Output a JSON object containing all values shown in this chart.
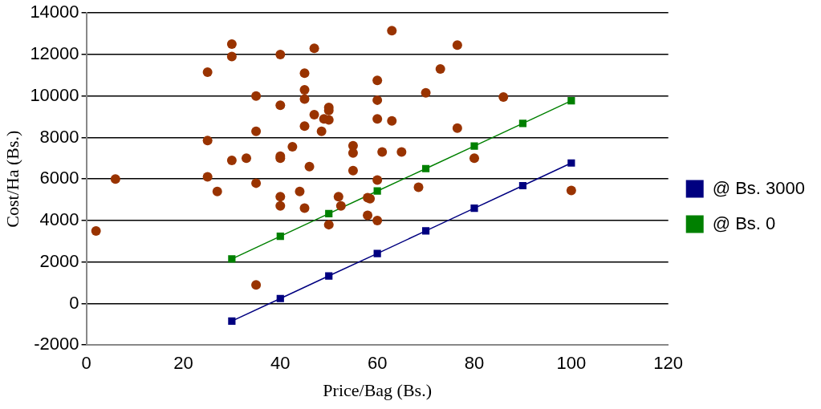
{
  "chart_data": {
    "type": "scatter",
    "xlabel": "Price/Bag (Bs.)",
    "ylabel": "Cost/Ha (Bs.)",
    "xlim": [
      0,
      120
    ],
    "xticks": [
      0,
      20,
      40,
      60,
      80,
      100,
      120
    ],
    "ylim": [
      -2000,
      14000
    ],
    "yticks": [
      -2000,
      0,
      2000,
      4000,
      6000,
      8000,
      10000,
      12000,
      14000
    ],
    "grid": "y",
    "legend": "right",
    "series": [
      {
        "color": "#993300",
        "marker": "circle",
        "x": [
          2,
          6,
          25,
          25,
          25,
          27,
          30,
          30,
          30,
          33,
          35,
          35,
          35,
          35,
          40,
          40,
          40,
          40,
          40,
          40,
          42.5,
          44,
          45,
          45,
          45,
          45,
          45,
          46,
          47,
          47,
          48.5,
          49,
          50,
          50,
          50,
          50,
          52,
          52.5,
          55,
          55,
          55,
          58,
          58,
          58.5,
          60,
          60,
          60,
          60,
          60,
          61,
          63,
          63,
          65,
          68.5,
          70,
          73,
          76.5,
          76.5,
          80,
          86,
          100
        ],
        "values": [
          3500,
          6000,
          11150,
          7850,
          6100,
          5400,
          12500,
          11900,
          6900,
          7000,
          10000,
          8300,
          5800,
          900,
          12000,
          9550,
          7100,
          7000,
          5150,
          4700,
          7550,
          5400,
          11100,
          10300,
          9850,
          8550,
          4600,
          6600,
          9100,
          12300,
          8300,
          8900,
          9450,
          9300,
          8850,
          3800,
          5150,
          4700,
          7600,
          7250,
          6400,
          5100,
          4250,
          5050,
          10750,
          9800,
          8900,
          5950,
          4000,
          7300,
          13150,
          8800,
          7300,
          5600,
          10150,
          11300,
          12450,
          8450,
          7000,
          9950,
          5450
        ]
      },
      {
        "type": "line",
        "name": "@ Bs. 3000",
        "color": "#000080",
        "marker": "square",
        "x": [
          30,
          40,
          50,
          60,
          70,
          80,
          90,
          100
        ],
        "values": [
          -850,
          240,
          1330,
          2410,
          3500,
          4590,
          5680,
          6770
        ]
      },
      {
        "type": "line",
        "name": "@ Bs. 0",
        "color": "#008000",
        "marker": "square",
        "x": [
          30,
          40,
          50,
          60,
          70,
          80,
          90,
          100
        ],
        "values": [
          2150,
          3240,
          4330,
          5420,
          6500,
          7590,
          8680,
          9770
        ]
      }
    ]
  }
}
